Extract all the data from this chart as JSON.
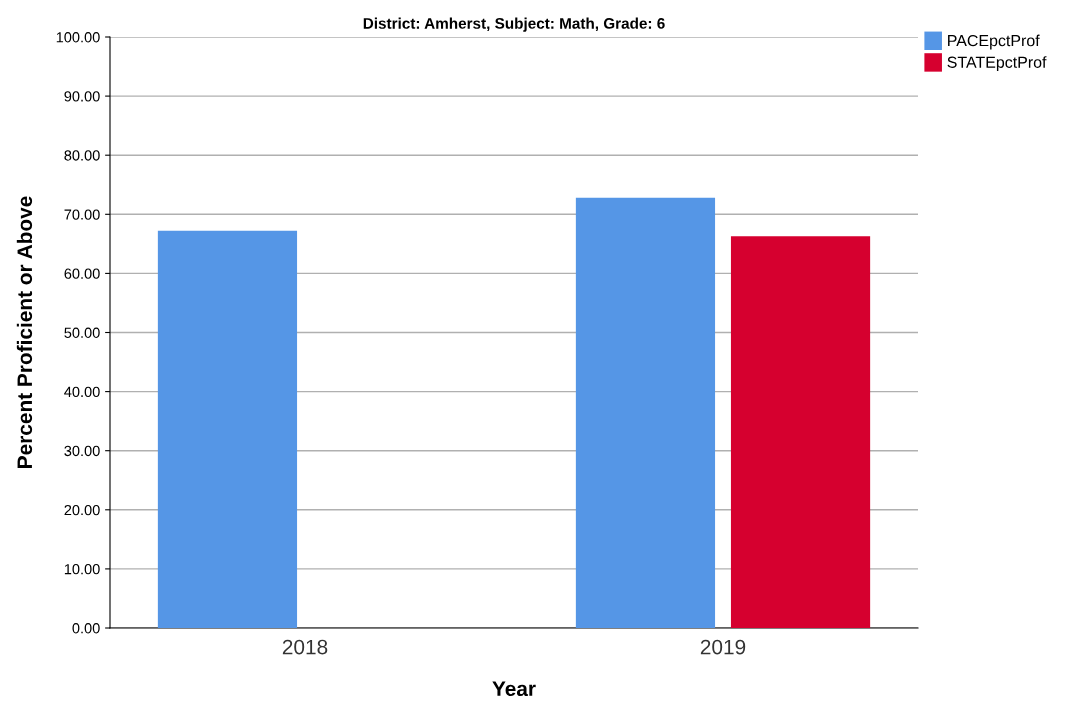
{
  "chart_data": {
    "type": "bar",
    "title": "District: Amherst, Subject: Math, Grade: 6",
    "xlabel": "Year",
    "ylabel": "Percent Proficient or Above",
    "categories": [
      "2018",
      "2019"
    ],
    "series": [
      {
        "name": "PACEpctProf",
        "color": "#5596e6",
        "values": [
          67.2,
          72.8
        ]
      },
      {
        "name": "STATEpctProf",
        "color": "#d6002f",
        "values": [
          null,
          66.3
        ]
      }
    ],
    "ylim": [
      0,
      100
    ],
    "yticks": [
      {
        "value": 0,
        "label": "0.00"
      },
      {
        "value": 10,
        "label": "10.00"
      },
      {
        "value": 20,
        "label": "20.00"
      },
      {
        "value": 30,
        "label": "30.00"
      },
      {
        "value": 40,
        "label": "40.00"
      },
      {
        "value": 50,
        "label": "50.00"
      },
      {
        "value": 60,
        "label": "60.00"
      },
      {
        "value": 70,
        "label": "70.00"
      },
      {
        "value": 80,
        "label": "80.00"
      },
      {
        "value": 90,
        "label": "90.00"
      },
      {
        "value": 100,
        "label": "100.00"
      }
    ],
    "grid": "y",
    "legend": "top right"
  }
}
